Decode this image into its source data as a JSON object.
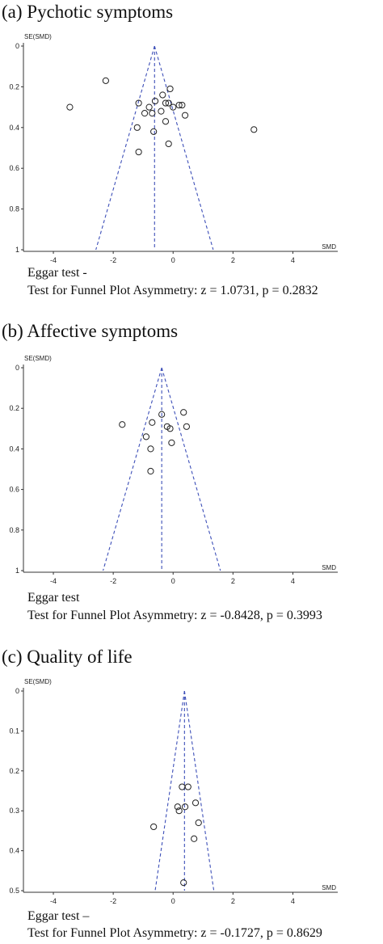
{
  "chart_data": [
    {
      "type": "scatter",
      "title": "(a) Pychotic symptoms",
      "xlabel": "SMD",
      "ylabel": "SE(SMD)",
      "xlim": [
        -5,
        5.5
      ],
      "ylim": [
        0,
        1
      ],
      "y_reversed": true,
      "xticks": [
        -4,
        -2,
        0,
        2,
        4
      ],
      "yticks": [
        0,
        0.2,
        0.4,
        0.6,
        0.8,
        1
      ],
      "ytick_labels": [
        "0",
        "0.2",
        "0.4",
        "0.6",
        "0.8",
        "1"
      ],
      "pooled_smd": -0.62,
      "funnel_half_width_per_se": 1.96,
      "grid": false,
      "points": [
        {
          "x": -2.25,
          "y": 0.17
        },
        {
          "x": -3.45,
          "y": 0.3
        },
        {
          "x": -1.15,
          "y": 0.28
        },
        {
          "x": -0.95,
          "y": 0.33
        },
        {
          "x": -0.8,
          "y": 0.3
        },
        {
          "x": -0.7,
          "y": 0.33
        },
        {
          "x": -0.6,
          "y": 0.27
        },
        {
          "x": -0.35,
          "y": 0.24
        },
        {
          "x": -0.4,
          "y": 0.32
        },
        {
          "x": -0.25,
          "y": 0.28
        },
        {
          "x": -0.1,
          "y": 0.21
        },
        {
          "x": -0.15,
          "y": 0.28
        },
        {
          "x": 0.0,
          "y": 0.3
        },
        {
          "x": 0.2,
          "y": 0.29
        },
        {
          "x": 0.3,
          "y": 0.29
        },
        {
          "x": 0.4,
          "y": 0.34
        },
        {
          "x": -0.25,
          "y": 0.37
        },
        {
          "x": -1.2,
          "y": 0.4
        },
        {
          "x": -0.65,
          "y": 0.42
        },
        {
          "x": -0.15,
          "y": 0.48
        },
        {
          "x": -1.15,
          "y": 0.52
        },
        {
          "x": 2.7,
          "y": 0.41
        }
      ],
      "annotation_lines": [
        "Eggar test -",
        "Test for Funnel Plot Asymmetry: z = 1.0731, p = 0.2832"
      ]
    },
    {
      "type": "scatter",
      "title": "(b) Affective symptoms",
      "xlabel": "SMD",
      "ylabel": "SE(SMD)",
      "xlim": [
        -5,
        5.5
      ],
      "ylim": [
        0,
        1
      ],
      "y_reversed": true,
      "xticks": [
        -4,
        -2,
        0,
        2,
        4
      ],
      "yticks": [
        0,
        0.2,
        0.4,
        0.6,
        0.8,
        1
      ],
      "ytick_labels": [
        "0",
        "0.2",
        "0.4",
        "0.6",
        "0.8",
        "1"
      ],
      "pooled_smd": -0.38,
      "funnel_half_width_per_se": 1.96,
      "grid": false,
      "points": [
        {
          "x": -1.7,
          "y": 0.28
        },
        {
          "x": -0.7,
          "y": 0.27
        },
        {
          "x": -0.9,
          "y": 0.34
        },
        {
          "x": -0.75,
          "y": 0.4
        },
        {
          "x": -0.75,
          "y": 0.51
        },
        {
          "x": -0.38,
          "y": 0.23
        },
        {
          "x": -0.2,
          "y": 0.29
        },
        {
          "x": -0.1,
          "y": 0.3
        },
        {
          "x": -0.05,
          "y": 0.37
        },
        {
          "x": 0.35,
          "y": 0.22
        },
        {
          "x": 0.45,
          "y": 0.29
        }
      ],
      "annotation_lines": [
        "Eggar test",
        "Test for Funnel Plot Asymmetry: z = -0.8428, p = 0.3993"
      ]
    },
    {
      "type": "scatter",
      "title": "(c) Quality of life",
      "xlabel": "SMD",
      "ylabel": "SE(SMD)",
      "xlim": [
        -5,
        5.5
      ],
      "ylim": [
        0,
        0.5
      ],
      "y_reversed": true,
      "xticks": [
        -4,
        -2,
        0,
        2,
        4
      ],
      "yticks": [
        0,
        0.1,
        0.2,
        0.3,
        0.4,
        0.5
      ],
      "ytick_labels": [
        "0",
        "0.1",
        "0.2",
        "0.3",
        "0.4",
        "0.5"
      ],
      "pooled_smd": 0.38,
      "funnel_half_width_per_se": 1.96,
      "grid": false,
      "points": [
        {
          "x": 0.3,
          "y": 0.24
        },
        {
          "x": 0.5,
          "y": 0.24
        },
        {
          "x": 0.75,
          "y": 0.28
        },
        {
          "x": 0.15,
          "y": 0.29
        },
        {
          "x": 0.2,
          "y": 0.3
        },
        {
          "x": 0.4,
          "y": 0.29
        },
        {
          "x": 0.85,
          "y": 0.33
        },
        {
          "x": -0.65,
          "y": 0.34
        },
        {
          "x": 0.7,
          "y": 0.37
        },
        {
          "x": 0.35,
          "y": 0.48
        }
      ],
      "annotation_lines": [
        "Eggar test –",
        "Test for Funnel Plot Asymmetry: z = -0.1727, p = 0.8629"
      ]
    }
  ]
}
